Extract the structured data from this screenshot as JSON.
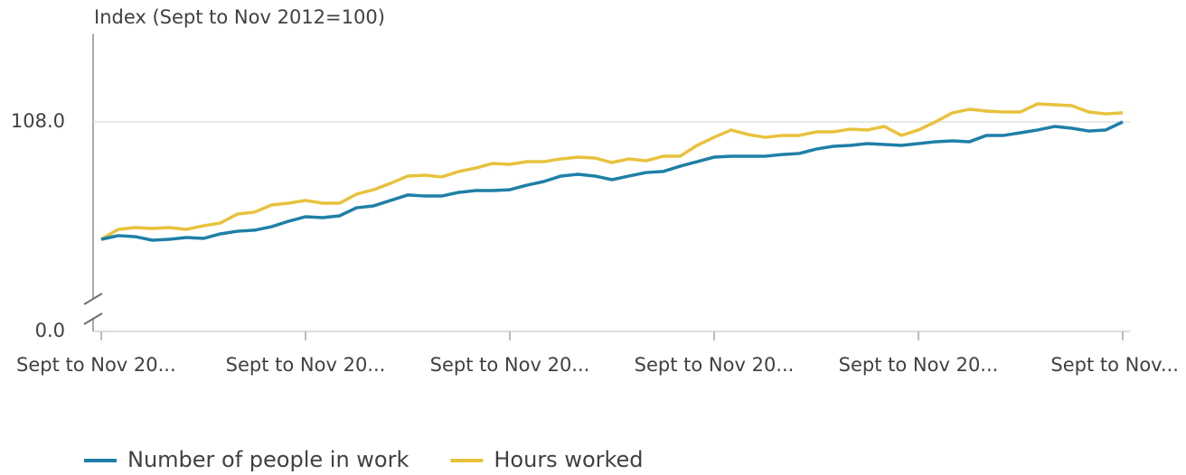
{
  "chart_data": {
    "type": "line",
    "y_label": "Index (Sept to Nov 2012=100)",
    "categories": [
      "Sept to Nov 20...",
      null,
      null,
      null,
      null,
      null,
      null,
      null,
      null,
      null,
      null,
      null,
      "Sept to Nov 20...",
      null,
      null,
      null,
      null,
      null,
      null,
      null,
      null,
      null,
      null,
      null,
      "Sept to Nov 20...",
      null,
      null,
      null,
      null,
      null,
      null,
      null,
      null,
      null,
      null,
      null,
      "Sept to Nov 20...",
      null,
      null,
      null,
      null,
      null,
      null,
      null,
      null,
      null,
      null,
      null,
      "Sept to Nov 20...",
      null,
      null,
      null,
      null,
      null,
      null,
      null,
      null,
      null,
      null,
      null,
      "Sept to Nov..."
    ],
    "series": [
      {
        "name": "Number of people in work",
        "color": "#1f7fa6",
        "values": [
          100.0,
          100.25,
          100.18,
          99.94,
          100.0,
          100.12,
          100.06,
          100.37,
          100.55,
          100.62,
          100.86,
          101.23,
          101.54,
          101.48,
          101.6,
          102.15,
          102.28,
          102.65,
          103.02,
          102.95,
          102.95,
          103.2,
          103.32,
          103.32,
          103.38,
          103.69,
          103.94,
          104.31,
          104.43,
          104.31,
          104.06,
          104.31,
          104.55,
          104.62,
          104.98,
          105.29,
          105.6,
          105.66,
          105.66,
          105.66,
          105.78,
          105.85,
          106.15,
          106.34,
          106.4,
          106.52,
          106.46,
          106.4,
          106.52,
          106.65,
          106.71,
          106.65,
          107.08,
          107.08,
          107.26,
          107.45,
          107.69,
          107.57,
          107.38,
          107.45,
          108.0
        ]
      },
      {
        "name": "Hours worked",
        "color": "#e8c23d",
        "values": [
          100.0,
          100.68,
          100.8,
          100.74,
          100.8,
          100.68,
          100.92,
          101.11,
          101.72,
          101.85,
          102.34,
          102.46,
          102.65,
          102.46,
          102.46,
          103.08,
          103.38,
          103.82,
          104.31,
          104.37,
          104.25,
          104.62,
          104.86,
          105.17,
          105.11,
          105.29,
          105.29,
          105.48,
          105.6,
          105.54,
          105.23,
          105.48,
          105.35,
          105.66,
          105.66,
          106.4,
          106.95,
          107.45,
          107.14,
          106.95,
          107.08,
          107.08,
          107.32,
          107.32,
          107.51,
          107.45,
          107.69,
          107.08,
          107.45,
          108.0,
          108.62,
          108.86,
          108.74,
          108.68,
          108.68,
          109.23,
          109.17,
          109.11,
          108.68,
          108.55,
          108.62
        ]
      }
    ],
    "ylim": [
      0,
      114
    ],
    "yticks": [
      {
        "value": 0,
        "label": "0.0"
      },
      {
        "value": 108,
        "label": "108.0"
      }
    ],
    "axis_break": [
      0,
      95
    ],
    "grid": true,
    "legend": "bottom"
  }
}
